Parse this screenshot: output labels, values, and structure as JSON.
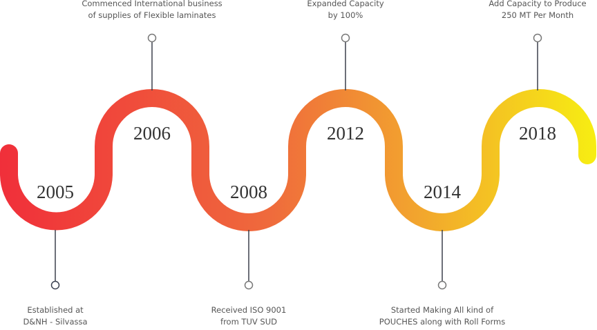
{
  "milestones": [
    {
      "year": "2005",
      "lines": [
        "Established at",
        "D&NH - Silvassa"
      ]
    },
    {
      "year": "2006",
      "lines": [
        "Commenced International business",
        "of supplies of Flexible laminates"
      ]
    },
    {
      "year": "2008",
      "lines": [
        "Received ISO 9001",
        "from TUV SUD"
      ]
    },
    {
      "year": "2012",
      "lines": [
        "Expanded Capacity",
        "by 100%"
      ]
    },
    {
      "year": "2014",
      "lines": [
        "Started Making All kind of",
        "POUCHES along with Roll Forms"
      ]
    },
    {
      "year": "2018",
      "lines": [
        "Add Capacity to Produce",
        "250 MT Per Month"
      ]
    }
  ]
}
